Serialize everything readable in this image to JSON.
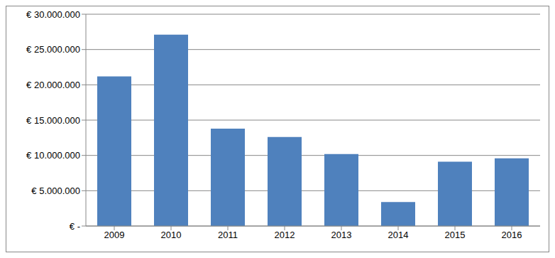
{
  "chart_data": {
    "type": "bar",
    "categories": [
      "2009",
      "2010",
      "2011",
      "2012",
      "2013",
      "2014",
      "2015",
      "2016"
    ],
    "values": [
      21200000,
      27100000,
      13800000,
      12600000,
      10200000,
      3400000,
      9100000,
      9600000
    ],
    "color": "#4f81bd",
    "ylim": [
      0,
      30000000
    ],
    "yticks": [
      {
        "value": 0,
        "label": "€ -"
      },
      {
        "value": 5000000,
        "label": "€ 5.000.000"
      },
      {
        "value": 10000000,
        "label": "€ 10.000.000"
      },
      {
        "value": 15000000,
        "label": "€ 15.000.000"
      },
      {
        "value": 20000000,
        "label": "€ 20.000.000"
      },
      {
        "value": 25000000,
        "label": "€ 25.000.000"
      },
      {
        "value": 30000000,
        "label": "€ 30.000.000"
      }
    ],
    "grid": true
  }
}
